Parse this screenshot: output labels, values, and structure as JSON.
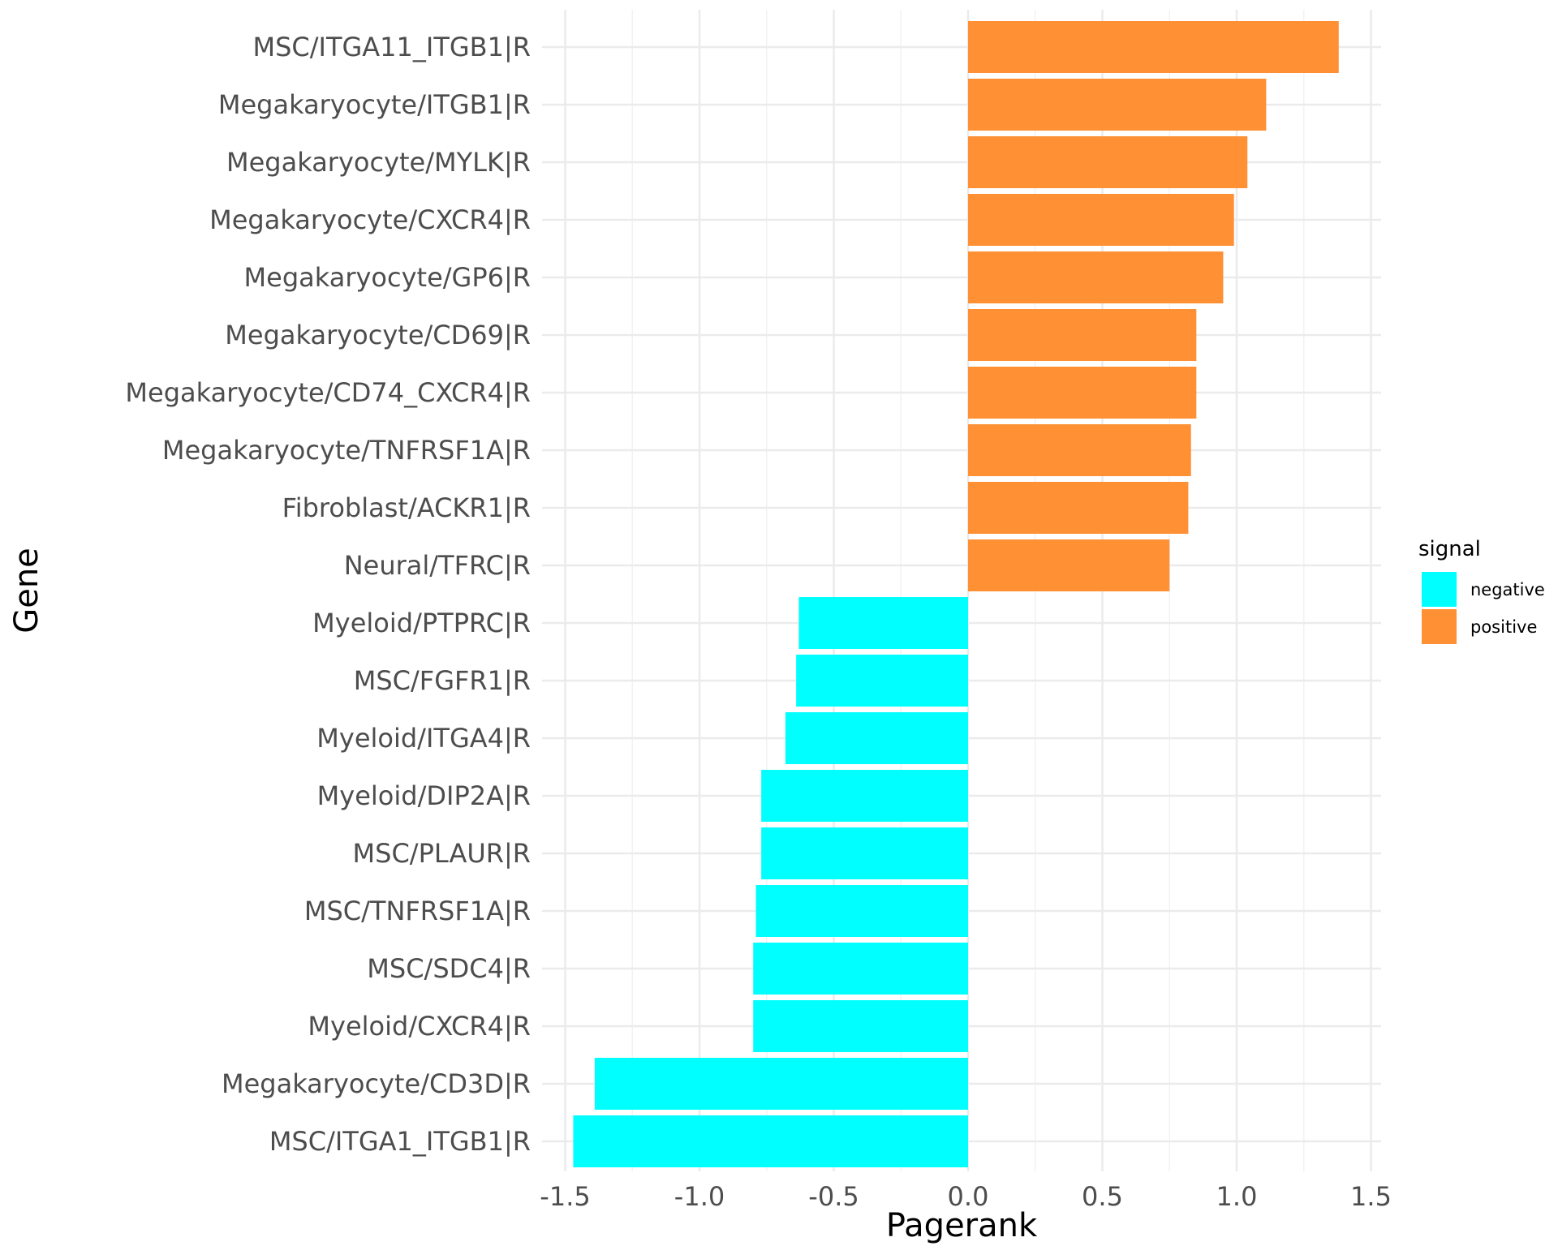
{
  "chart_data": {
    "type": "bar",
    "orientation": "horizontal",
    "xlabel": "Pagerank",
    "ylabel": "Gene",
    "xlim": [
      -1.52,
      1.52
    ],
    "xticks": [
      "-1.5",
      "-1.0",
      "-0.5",
      "0.0",
      "0.5",
      "1.0",
      "1.5"
    ],
    "xtick_values": [
      -1.5,
      -1.0,
      -0.5,
      0.0,
      0.5,
      1.0,
      1.5
    ],
    "grid": true,
    "legend": {
      "title": "signal",
      "position": "right",
      "entries": [
        {
          "label": "negative",
          "color": "#00FFFF"
        },
        {
          "label": "positive",
          "color": "#FF9033"
        }
      ]
    },
    "categories": [
      "MSC/ITGA11_ITGB1|R",
      "Megakaryocyte/ITGB1|R",
      "Megakaryocyte/MYLK|R",
      "Megakaryocyte/CXCR4|R",
      "Megakaryocyte/GP6|R",
      "Megakaryocyte/CD69|R",
      "Megakaryocyte/CD74_CXCR4|R",
      "Megakaryocyte/TNFRSF1A|R",
      "Fibroblast/ACKR1|R",
      "Neural/TFRC|R",
      "Myeloid/PTPRC|R",
      "MSC/FGFR1|R",
      "Myeloid/ITGA4|R",
      "Myeloid/DIP2A|R",
      "MSC/PLAUR|R",
      "MSC/TNFRSF1A|R",
      "MSC/SDC4|R",
      "Myeloid/CXCR4|R",
      "Megakaryocyte/CD3D|R",
      "MSC/ITGA1_ITGB1|R"
    ],
    "values": [
      1.38,
      1.11,
      1.04,
      0.99,
      0.95,
      0.85,
      0.85,
      0.83,
      0.82,
      0.75,
      -0.63,
      -0.64,
      -0.68,
      -0.77,
      -0.77,
      -0.79,
      -0.8,
      -0.8,
      -1.39,
      -1.47
    ],
    "signal": [
      "positive",
      "positive",
      "positive",
      "positive",
      "positive",
      "positive",
      "positive",
      "positive",
      "positive",
      "positive",
      "negative",
      "negative",
      "negative",
      "negative",
      "negative",
      "negative",
      "negative",
      "negative",
      "negative",
      "negative"
    ]
  }
}
